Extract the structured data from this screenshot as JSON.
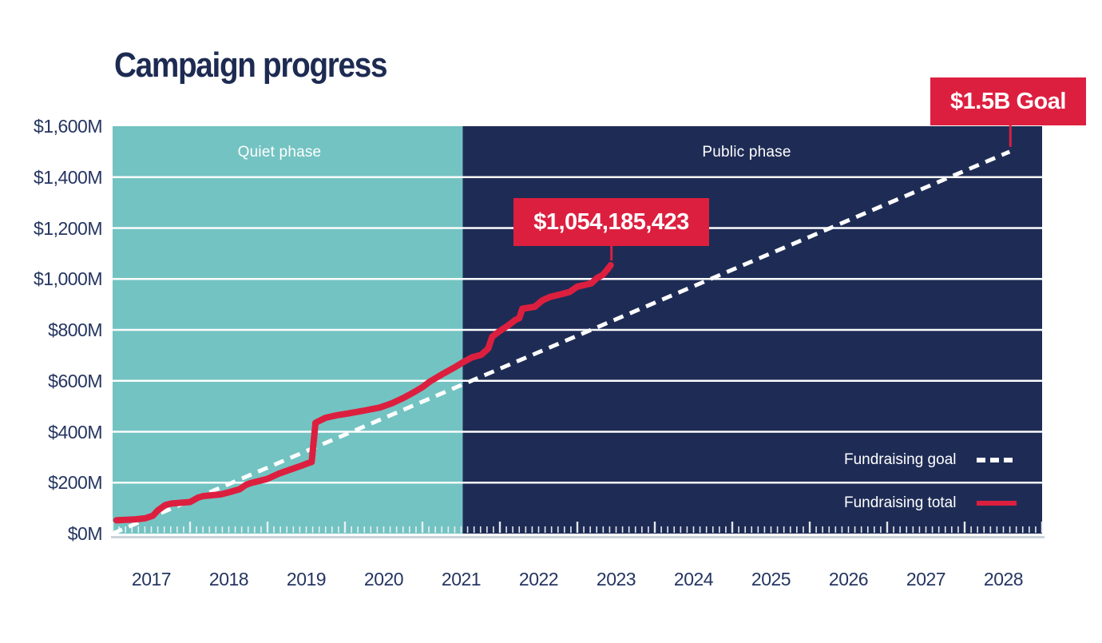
{
  "title": "Campaign progress",
  "legend": {
    "goal_label": "Fundraising goal",
    "total_label": "Fundraising total"
  },
  "callouts": {
    "total": {
      "label": "$1,054,185,423"
    },
    "goal": {
      "label": "$1.5B Goal"
    }
  },
  "colors": {
    "quiet_phase": "#73c3c2",
    "public_phase": "#1e2c55",
    "accent_red": "#dd1f3f",
    "grid_white": "#fbfcfd",
    "tick_white": "#f0f3f5",
    "baseline_gray": "#ccd3da",
    "text_navy": "#253561",
    "title_navy": "#1d2b52"
  },
  "chart_data": {
    "type": "line",
    "title": "Campaign progress",
    "x_axis": {
      "min": 2017,
      "max": 2029,
      "tick_labels": [
        "2017",
        "2018",
        "2019",
        "2020",
        "2021",
        "2022",
        "2023",
        "2024",
        "2025",
        "2026",
        "2027",
        "2028"
      ],
      "minor_ticks_per_year": 12
    },
    "y_axis": {
      "min": 0,
      "max": 1600,
      "step": 200,
      "tick_labels": [
        "$0M",
        "$200M",
        "$400M",
        "$600M",
        "$800M",
        "$1,000M",
        "$1,200M",
        "$1,400M",
        "$1,600M"
      ],
      "unit": "millions USD"
    },
    "grid": true,
    "legend_position": "inside-bottom-right",
    "phases": [
      {
        "label": "Quiet phase",
        "start": 2017.0,
        "end": 2021.52,
        "color": "#73c3c2"
      },
      {
        "label": "Public phase",
        "start": 2021.52,
        "end": 2029.0,
        "color": "#1e2c55"
      }
    ],
    "series": [
      {
        "name": "Fundraising goal",
        "style": "dashed",
        "color": "#ffffff",
        "points": [
          [
            2017.0,
            0
          ],
          [
            2028.58,
            1500
          ]
        ]
      },
      {
        "name": "Fundraising total",
        "style": "solid",
        "color": "#dd1f3f",
        "points": [
          [
            2017.05,
            52
          ],
          [
            2017.3,
            56
          ],
          [
            2017.42,
            60
          ],
          [
            2017.52,
            70
          ],
          [
            2017.58,
            90
          ],
          [
            2017.68,
            112
          ],
          [
            2017.76,
            118
          ],
          [
            2018.0,
            124
          ],
          [
            2018.1,
            141
          ],
          [
            2018.17,
            147
          ],
          [
            2018.4,
            154
          ],
          [
            2018.5,
            162
          ],
          [
            2018.64,
            174
          ],
          [
            2018.72,
            191
          ],
          [
            2018.78,
            198
          ],
          [
            2019.0,
            215
          ],
          [
            2019.15,
            236
          ],
          [
            2019.3,
            252
          ],
          [
            2019.45,
            268
          ],
          [
            2019.52,
            276
          ],
          [
            2019.57,
            281
          ],
          [
            2019.62,
            435
          ],
          [
            2019.75,
            455
          ],
          [
            2019.9,
            465
          ],
          [
            2020.05,
            472
          ],
          [
            2020.25,
            483
          ],
          [
            2020.45,
            495
          ],
          [
            2020.6,
            511
          ],
          [
            2020.75,
            532
          ],
          [
            2020.9,
            557
          ],
          [
            2021.0,
            575
          ],
          [
            2021.1,
            598
          ],
          [
            2021.25,
            625
          ],
          [
            2021.4,
            650
          ],
          [
            2021.52,
            672
          ],
          [
            2021.64,
            692
          ],
          [
            2021.76,
            702
          ],
          [
            2021.85,
            727
          ],
          [
            2021.9,
            773
          ],
          [
            2022.0,
            796
          ],
          [
            2022.1,
            816
          ],
          [
            2022.2,
            839
          ],
          [
            2022.25,
            846
          ],
          [
            2022.29,
            883
          ],
          [
            2022.45,
            891
          ],
          [
            2022.55,
            916
          ],
          [
            2022.65,
            930
          ],
          [
            2022.8,
            941
          ],
          [
            2022.9,
            949
          ],
          [
            2023.0,
            970
          ],
          [
            2023.1,
            977
          ],
          [
            2023.18,
            983
          ],
          [
            2023.25,
            1003
          ],
          [
            2023.33,
            1016
          ],
          [
            2023.4,
            1042
          ],
          [
            2023.43,
            1054
          ]
        ]
      }
    ],
    "annotations": [
      {
        "label": "$1,054,185,423",
        "x": 2023.43,
        "y": 1054,
        "series": "Fundraising total"
      },
      {
        "label": "$1.5B Goal",
        "x": 2028.58,
        "y": 1500,
        "series": "Fundraising goal"
      }
    ]
  }
}
